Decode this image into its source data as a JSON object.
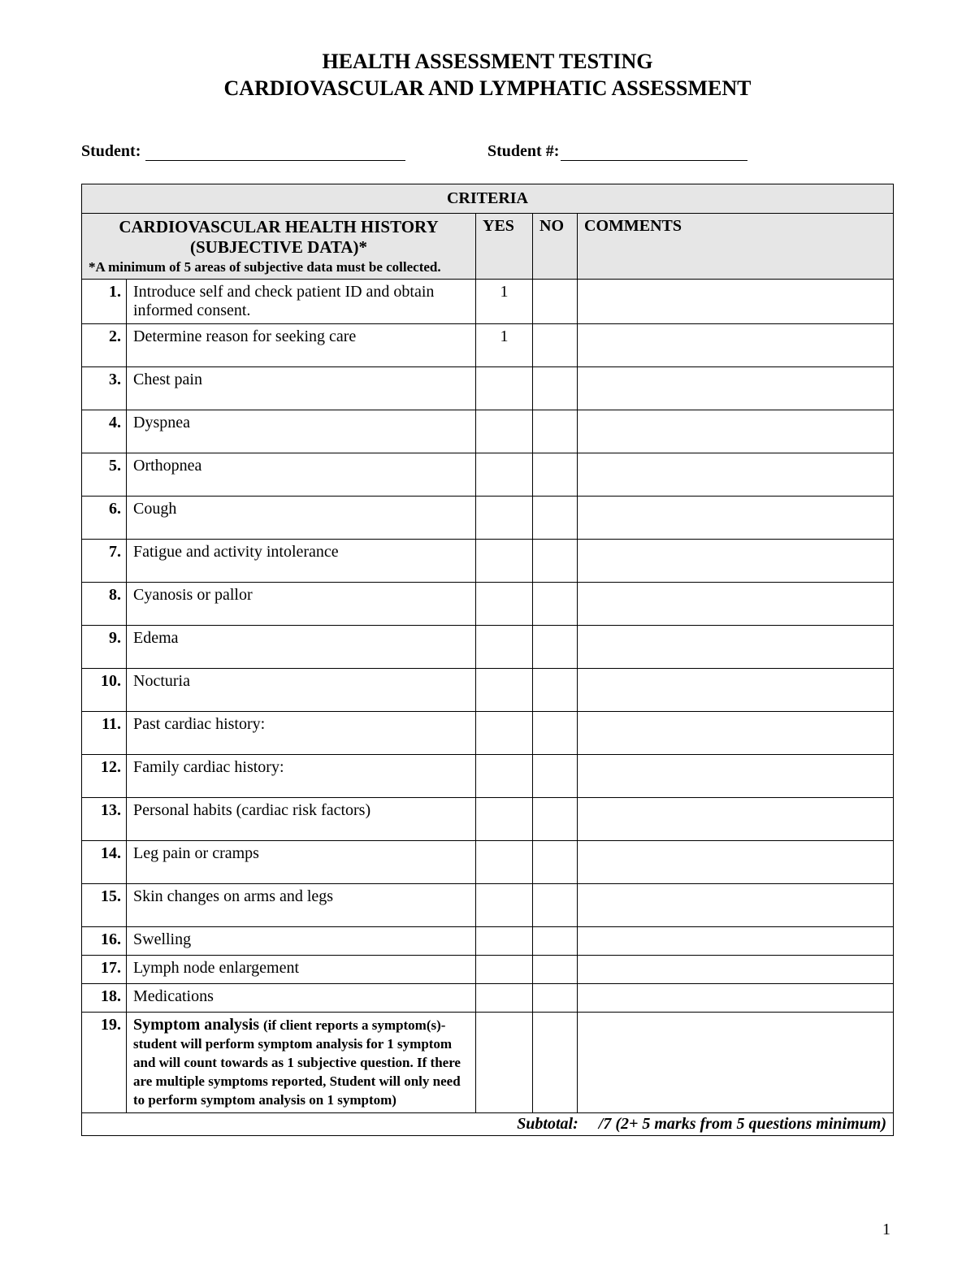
{
  "title_line1": "HEALTH ASSESSMENT TESTING",
  "title_line2": "CARDIOVASCULAR AND LYMPHATIC ASSESSMENT",
  "labels": {
    "student": "Student:",
    "student_num": "Student #:",
    "criteria": "CRITERIA",
    "yes": "YES",
    "no": "NO",
    "comments": "COMMENTS"
  },
  "section": {
    "title_line1": "CARDIOVASCULAR HEALTH HISTORY",
    "title_line2": "(SUBJECTIVE DATA)*",
    "note": "*A minimum of 5 areas of subjective data must be collected."
  },
  "rows": [
    {
      "num": "1.",
      "desc": "Introduce self and check patient ID and obtain informed consent.",
      "yes": "1",
      "no": "",
      "tall": true
    },
    {
      "num": "2.",
      "desc": "Determine reason for seeking care",
      "yes": "1",
      "no": "",
      "tall": true
    },
    {
      "num": "3.",
      "desc": "Chest pain",
      "yes": "",
      "no": "",
      "tall": true
    },
    {
      "num": "4.",
      "desc": "Dyspnea",
      "yes": "",
      "no": "",
      "tall": true
    },
    {
      "num": "5.",
      "desc": "Orthopnea",
      "yes": "",
      "no": "",
      "tall": true
    },
    {
      "num": "6.",
      "desc": "Cough",
      "yes": "",
      "no": "",
      "tall": true
    },
    {
      "num": "7.",
      "desc": "Fatigue and activity intolerance",
      "yes": "",
      "no": "",
      "tall": true
    },
    {
      "num": "8.",
      "desc": "Cyanosis or pallor",
      "yes": "",
      "no": "",
      "tall": true
    },
    {
      "num": "9.",
      "desc": "Edema",
      "yes": "",
      "no": "",
      "tall": true
    },
    {
      "num": "10.",
      "desc": "Nocturia",
      "yes": "",
      "no": "",
      "tall": true
    },
    {
      "num": "11.",
      "desc": "Past cardiac history:",
      "yes": "",
      "no": "",
      "tall": true
    },
    {
      "num": "12.",
      "desc": "Family cardiac history:",
      "yes": "",
      "no": "",
      "tall": true
    },
    {
      "num": "13.",
      "desc": "Personal habits (cardiac risk factors)",
      "yes": "",
      "no": "",
      "tall": true
    },
    {
      "num": "14.",
      "desc": "Leg pain or cramps",
      "yes": "",
      "no": "",
      "tall": true
    },
    {
      "num": "15.",
      "desc": "Skin changes on arms and legs",
      "yes": "",
      "no": "",
      "tall": true
    },
    {
      "num": "16.",
      "desc": "Swelling",
      "yes": "",
      "no": "",
      "tall": false
    },
    {
      "num": "17.",
      "desc": "Lymph node enlargement",
      "yes": "",
      "no": "",
      "tall": false
    },
    {
      "num": "18.",
      "desc": "Medications",
      "yes": "",
      "no": "",
      "tall": false
    }
  ],
  "row19": {
    "num": "19.",
    "lead": "Symptom analysis ",
    "note": "(if client reports a symptom(s)- student will perform symptom analysis for 1 symptom and will count towards as 1 subjective question. If there are multiple symptoms reported, Student will only need to perform symptom analysis on 1 symptom)"
  },
  "subtotal": {
    "label": "Subtotal:",
    "value": "/7 (2+ 5 marks from 5 questions minimum)"
  },
  "page_number": "1",
  "colors": {
    "header_bg": "#e6e6e6",
    "border": "#000000",
    "text": "#000000",
    "page_bg": "#ffffff"
  }
}
